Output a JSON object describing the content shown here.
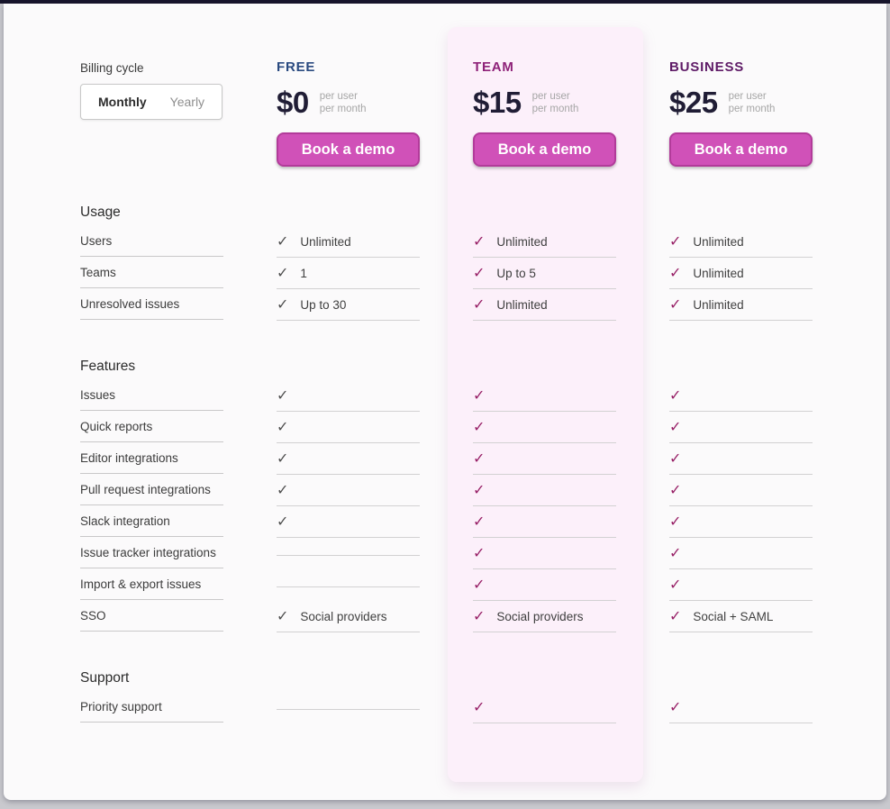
{
  "billing": {
    "label": "Billing cycle",
    "options": [
      {
        "label": "Monthly",
        "selected": true
      },
      {
        "label": "Yearly",
        "selected": false
      }
    ]
  },
  "plans": [
    {
      "name": "FREE",
      "price": "$0",
      "note1": "per user",
      "note2": "per month",
      "cta": "Book a demo",
      "highlighted": false
    },
    {
      "name": "TEAM",
      "price": "$15",
      "note1": "per user",
      "note2": "per month",
      "cta": "Book a demo",
      "highlighted": true
    },
    {
      "name": "BUSINESS",
      "price": "$25",
      "note1": "per user",
      "note2": "per month",
      "cta": "Book a demo",
      "highlighted": false
    }
  ],
  "sections": [
    {
      "title": "Usage",
      "rows": [
        {
          "label": "Users",
          "cells": [
            {
              "check": true,
              "text": "Unlimited"
            },
            {
              "check": true,
              "text": "Unlimited"
            },
            {
              "check": true,
              "text": "Unlimited"
            }
          ]
        },
        {
          "label": "Teams",
          "cells": [
            {
              "check": true,
              "text": "1"
            },
            {
              "check": true,
              "text": "Up to 5"
            },
            {
              "check": true,
              "text": "Unlimited"
            }
          ]
        },
        {
          "label": "Unresolved issues",
          "cells": [
            {
              "check": true,
              "text": "Up to 30"
            },
            {
              "check": true,
              "text": "Unlimited"
            },
            {
              "check": true,
              "text": "Unlimited"
            }
          ]
        }
      ]
    },
    {
      "title": "Features",
      "rows": [
        {
          "label": "Issues",
          "cells": [
            {
              "check": true,
              "text": ""
            },
            {
              "check": true,
              "text": ""
            },
            {
              "check": true,
              "text": ""
            }
          ]
        },
        {
          "label": "Quick reports",
          "cells": [
            {
              "check": true,
              "text": ""
            },
            {
              "check": true,
              "text": ""
            },
            {
              "check": true,
              "text": ""
            }
          ]
        },
        {
          "label": "Editor integrations",
          "cells": [
            {
              "check": true,
              "text": ""
            },
            {
              "check": true,
              "text": ""
            },
            {
              "check": true,
              "text": ""
            }
          ]
        },
        {
          "label": "Pull request integrations",
          "cells": [
            {
              "check": true,
              "text": ""
            },
            {
              "check": true,
              "text": ""
            },
            {
              "check": true,
              "text": ""
            }
          ]
        },
        {
          "label": "Slack integration",
          "cells": [
            {
              "check": true,
              "text": ""
            },
            {
              "check": true,
              "text": ""
            },
            {
              "check": true,
              "text": ""
            }
          ]
        },
        {
          "label": "Issue tracker integrations",
          "cells": [
            {
              "check": false,
              "text": ""
            },
            {
              "check": true,
              "text": ""
            },
            {
              "check": true,
              "text": ""
            }
          ]
        },
        {
          "label": "Import & export issues",
          "cells": [
            {
              "check": false,
              "text": ""
            },
            {
              "check": true,
              "text": ""
            },
            {
              "check": true,
              "text": ""
            }
          ]
        },
        {
          "label": "SSO",
          "cells": [
            {
              "check": true,
              "text": "Social providers"
            },
            {
              "check": true,
              "text": "Social providers"
            },
            {
              "check": true,
              "text": "Social + SAML"
            }
          ]
        }
      ]
    },
    {
      "title": "Support",
      "rows": [
        {
          "label": "Priority support",
          "cells": [
            {
              "check": false,
              "text": ""
            },
            {
              "check": true,
              "text": ""
            },
            {
              "check": true,
              "text": ""
            }
          ]
        }
      ]
    }
  ],
  "icons": {
    "check": "✓"
  },
  "colors": {
    "free_name": "#2a4a80",
    "team_name": "#8e2178",
    "business_name": "#5e1a66",
    "accent_button": "#d051b8",
    "button_border": "#b23b9a",
    "free_check": "#4f4f4f",
    "paid_check": "#971f66",
    "team_highlight_bg": "#fcf0fa"
  }
}
